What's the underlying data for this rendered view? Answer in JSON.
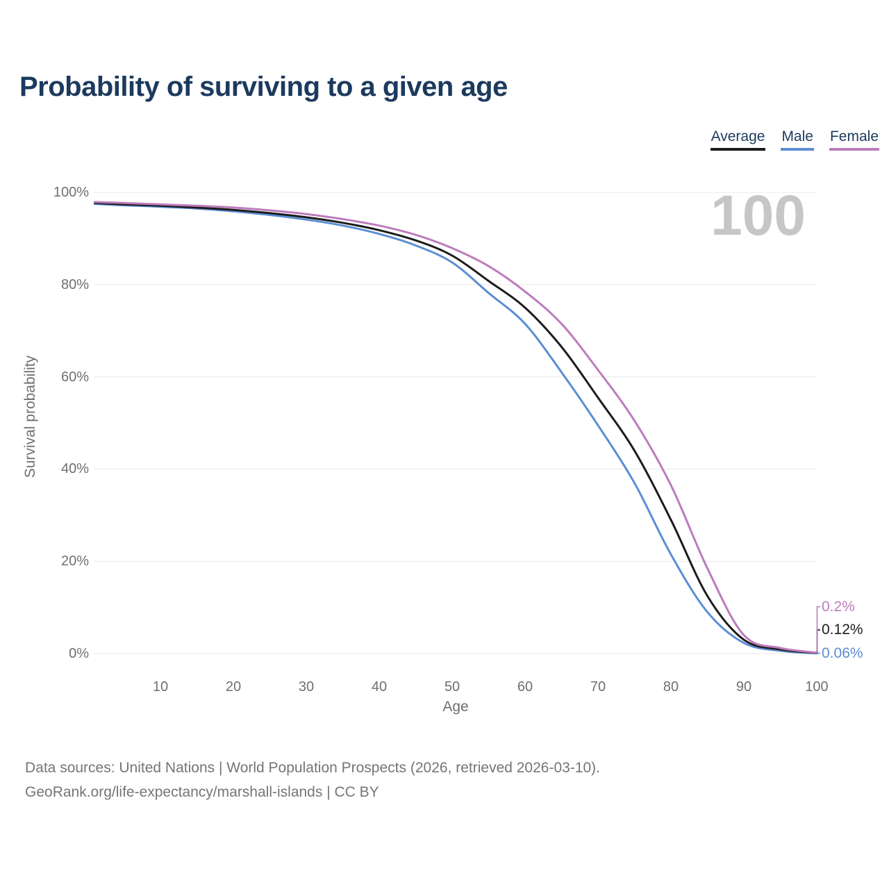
{
  "title": "Probability of surviving to a given age",
  "legend": [
    {
      "label": "Average",
      "color": "#1c1c1c"
    },
    {
      "label": "Male",
      "color": "#5b8ed3"
    },
    {
      "label": "Female",
      "color": "#bc7cbc"
    }
  ],
  "watermark": "100",
  "y_axis": {
    "title": "Survival probability",
    "ticks": [
      {
        "label": "100%",
        "value": 100
      },
      {
        "label": "80%",
        "value": 80
      },
      {
        "label": "60%",
        "value": 60
      },
      {
        "label": "40%",
        "value": 40
      },
      {
        "label": "20%",
        "value": 20
      },
      {
        "label": "0%",
        "value": 0
      }
    ]
  },
  "x_axis": {
    "title": "Age",
    "ticks": [
      {
        "label": "10",
        "value": 10
      },
      {
        "label": "20",
        "value": 20
      },
      {
        "label": "30",
        "value": 30
      },
      {
        "label": "40",
        "value": 40
      },
      {
        "label": "50",
        "value": 50
      },
      {
        "label": "60",
        "value": 60
      },
      {
        "label": "70",
        "value": 70
      },
      {
        "label": "80",
        "value": 80
      },
      {
        "label": "90",
        "value": 90
      },
      {
        "label": "100",
        "value": 100
      }
    ]
  },
  "source_line1": "Data sources: United Nations | World Population Prospects (2026, retrieved 2026-03-10).",
  "source_line2": "GeoRank.org/life-expectancy/marshall-islands | CC BY",
  "chart_data": {
    "type": "line",
    "title": "Probability of surviving to a given age",
    "xlabel": "Age",
    "ylabel": "Survival probability",
    "xlim": [
      1,
      100
    ],
    "ylim": [
      0,
      100
    ],
    "x_ticks": [
      10,
      20,
      30,
      40,
      50,
      60,
      70,
      80,
      90,
      100
    ],
    "y_ticks": [
      0,
      20,
      40,
      60,
      80,
      100
    ],
    "grid": "horizontal",
    "legend_position": "top-right",
    "grid_color": "#e8e8e8",
    "ages": [
      1,
      5,
      10,
      15,
      20,
      25,
      30,
      35,
      40,
      45,
      50,
      55,
      60,
      65,
      70,
      75,
      80,
      85,
      90,
      95,
      100
    ],
    "series": [
      {
        "name": "Male",
        "color": "#5b8ed3",
        "end_label": "0.06%",
        "values": [
          97.5,
          97.2,
          96.9,
          96.5,
          95.9,
          95.1,
          94.1,
          92.8,
          91.0,
          88.5,
          84.8,
          78.2,
          71.5,
          61.0,
          49.5,
          37.0,
          21.5,
          9.0,
          2.3,
          0.6,
          0.06
        ]
      },
      {
        "name": "Average",
        "color": "#1c1c1c",
        "end_label": "0.12%",
        "values": [
          97.7,
          97.4,
          97.1,
          96.7,
          96.2,
          95.5,
          94.6,
          93.4,
          91.8,
          89.6,
          86.3,
          80.8,
          75.0,
          66.5,
          55.5,
          44.0,
          29.0,
          12.5,
          3.0,
          0.9,
          0.12
        ]
      },
      {
        "name": "Female",
        "color": "#bc7cbc",
        "end_label": "0.2%",
        "values": [
          97.9,
          97.7,
          97.4,
          97.1,
          96.7,
          96.1,
          95.3,
          94.2,
          92.8,
          90.8,
          87.9,
          84.0,
          78.5,
          71.5,
          61.5,
          50.5,
          36.5,
          18.5,
          4.0,
          1.2,
          0.2
        ]
      }
    ]
  }
}
